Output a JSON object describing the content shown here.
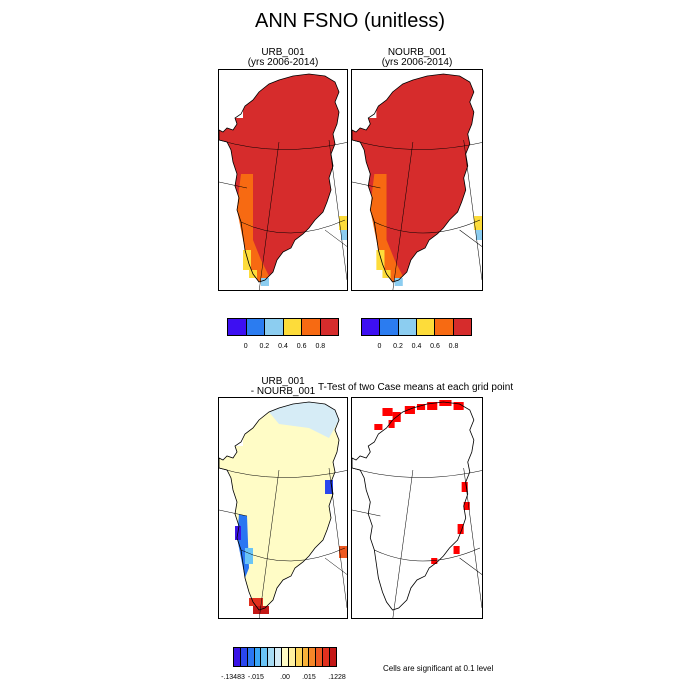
{
  "title": "ANN FSNO (unitless)",
  "panels": {
    "urb": {
      "line1": "URB_001",
      "line2": "(yrs 2006-2014)"
    },
    "nourb": {
      "line1": "NOURB_001",
      "line2": "(yrs 2006-2014)"
    },
    "diff": {
      "line1": "URB_001",
      "line2": "- NOURB_001"
    },
    "ttest": {
      "title": "T-Test of two Case means at each grid point"
    }
  },
  "colorbar_top": {
    "colors": [
      "#3d0ff2",
      "#2b7cf0",
      "#8ccdf0",
      "#fddc3a",
      "#f76a12",
      "#d62c2c"
    ],
    "labels": [
      "0",
      "0.2",
      "0.4",
      "0.6",
      "0.8"
    ]
  },
  "colorbar_bottom": {
    "colors": [
      "#3a14e6",
      "#2a46ee",
      "#2a76f2",
      "#3aa6f6",
      "#6ac4f6",
      "#a8dcf4",
      "#d6ecf6",
      "#fffcc6",
      "#fff0a0",
      "#fdd45a",
      "#f8b23a",
      "#f58628",
      "#ee5a22",
      "#e1301e",
      "#c41816"
    ],
    "labels": [
      "-.13483",
      "-.015",
      ".00",
      ".015",
      ".1228"
    ]
  },
  "significance_note": "Cells are significant at 0.1 level",
  "chart_data": [
    {
      "type": "heatmap",
      "title": "URB_001",
      "subtitle": "(yrs 2006-2014)",
      "field": "FSNO",
      "units": "unitless",
      "range": [
        0,
        1
      ],
      "summary": {
        "interior": 1.0,
        "west_margin": 0.7,
        "south_tip": 0.5,
        "southwest_edge": 0.3
      }
    },
    {
      "type": "heatmap",
      "title": "NOURB_001",
      "subtitle": "(yrs 2006-2014)",
      "field": "FSNO",
      "units": "unitless",
      "range": [
        0,
        1
      ],
      "summary": {
        "interior": 1.0,
        "west_margin": 0.7,
        "south_tip": 0.5,
        "southwest_edge": 0.3
      }
    },
    {
      "type": "heatmap",
      "title": "URB_001 - NOURB_001",
      "field": "FSNO difference",
      "range": [
        -0.13483,
        0.1228
      ],
      "summary": {
        "interior": 0.0,
        "north_coast": -0.006,
        "west_coast_min": -0.13483,
        "south_tip_max": 0.1228
      }
    },
    {
      "type": "heatmap",
      "title": "T-Test of two Case means at each grid point",
      "significance_level": 0.1,
      "summary": {
        "significant_regions": [
          "north coast",
          "east coast",
          "south-east coast"
        ]
      }
    }
  ]
}
